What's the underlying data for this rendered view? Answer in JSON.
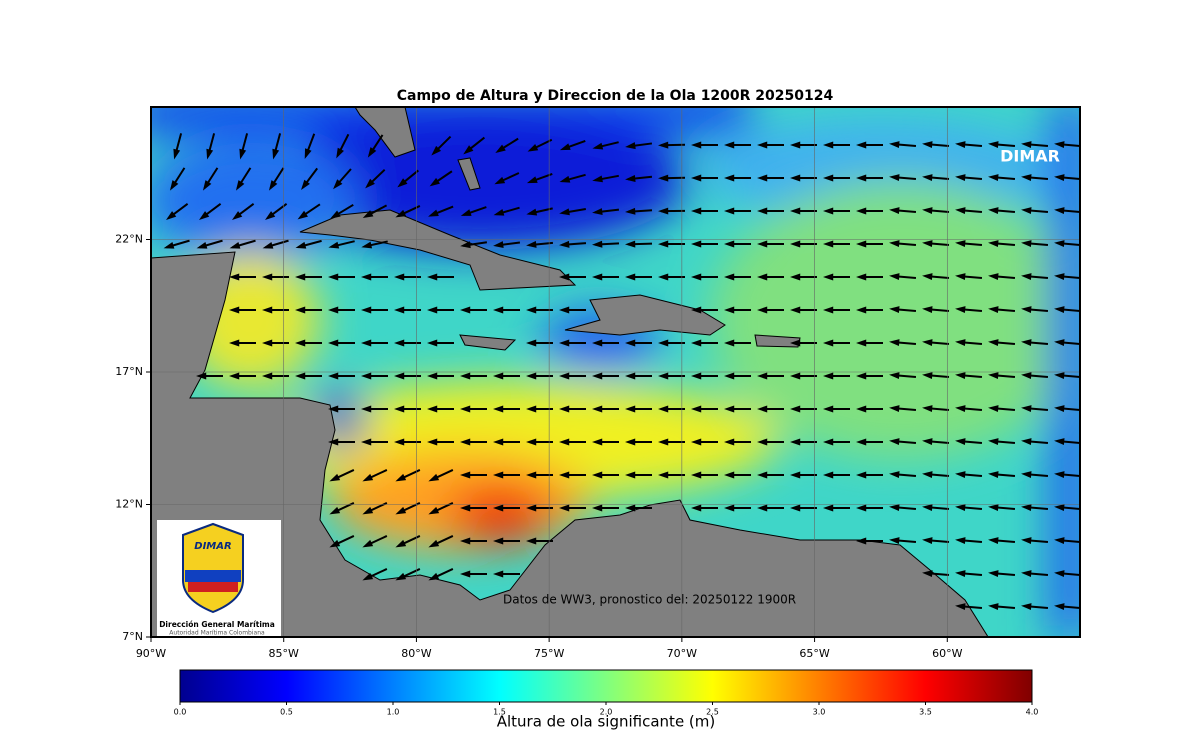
{
  "map": {
    "title": "Campo de Altura y Direccion de la Ola 1200R 20250124",
    "watermark": "DIMAR",
    "annotation": "Datos de WW3, pronostico del: 20250122 1900R",
    "lon_range": [
      -90,
      -55
    ],
    "lat_range": [
      7,
      27
    ],
    "xticks": [
      {
        "value": -90,
        "label": "90°W"
      },
      {
        "value": -85,
        "label": "85°W"
      },
      {
        "value": -80,
        "label": "80°W"
      },
      {
        "value": -75,
        "label": "75°W"
      },
      {
        "value": -70,
        "label": "70°W"
      },
      {
        "value": -65,
        "label": "65°W"
      },
      {
        "value": -60,
        "label": "60°W"
      }
    ],
    "yticks": [
      {
        "value": 7,
        "label": "7°N"
      },
      {
        "value": 12,
        "label": "12°N"
      },
      {
        "value": 17,
        "label": "17°N"
      },
      {
        "value": 22,
        "label": "22°N"
      }
    ],
    "colorbar": {
      "label": "Altura de ola significante (m)",
      "range": [
        0,
        4
      ],
      "ticks": [
        {
          "value": 0,
          "label": "0.0"
        },
        0.5,
        {
          "value": 1,
          "label": "1.0"
        },
        1.5,
        {
          "value": 2,
          "label": "2.0"
        },
        2.5,
        {
          "value": 3,
          "label": "3.0"
        },
        3.5,
        {
          "value": 4,
          "label": "4.0"
        }
      ]
    },
    "logo": {
      "mark": "DIMAR",
      "title": "Dirección General Marítima",
      "subtitle": "Autoridad Marítima Colombiana"
    }
  }
}
